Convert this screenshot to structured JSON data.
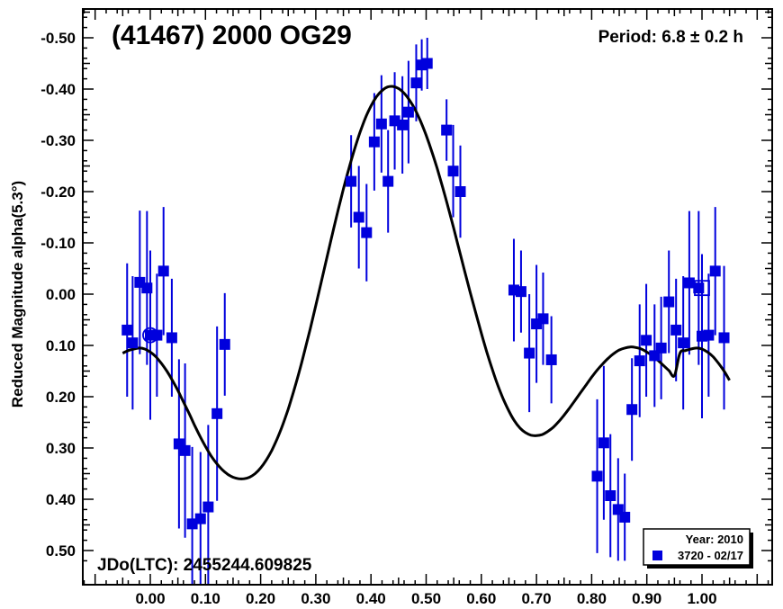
{
  "chart_data": {
    "type": "scatter",
    "title": "(41467) 2000 OG29",
    "period_label": "Period: 6.8 ± 0.2 h",
    "jd_label": "JDo(LTC): 2455244.609825",
    "ylabel": "Reduced Magnitude alpha(5.3°)",
    "xlim": [
      -0.125,
      1.125
    ],
    "ylim": [
      0.52,
      -0.56
    ],
    "x_ticks": [
      0.0,
      0.1,
      0.2,
      0.3,
      0.4,
      0.5,
      0.6,
      0.7,
      0.8,
      0.9,
      1.0
    ],
    "x_tick_labels": [
      "0.00",
      "0.10",
      "0.20",
      "0.30",
      "0.40",
      "0.50",
      "0.60",
      "0.70",
      "0.80",
      "0.90",
      "1.00"
    ],
    "y_ticks": [
      -0.5,
      -0.4,
      -0.3,
      -0.2,
      -0.1,
      0.0,
      0.1,
      0.2,
      0.3,
      0.4,
      0.5
    ],
    "y_tick_labels": [
      "-0.50",
      "-0.40",
      "-0.30",
      "-0.20",
      "-0.10",
      "0.00",
      "0.10",
      "0.20",
      "0.30",
      "0.40",
      "0.50"
    ],
    "grid": false,
    "legend": {
      "placement": "bottom-right",
      "header": "Year: 2010",
      "entries": [
        {
          "label": "3720 - 02/17",
          "color": "#0000dd",
          "marker": "square"
        }
      ]
    },
    "colors": {
      "points": "#0000dd",
      "errorbars": "#0000dd",
      "curve": "#000000"
    },
    "series": [
      {
        "name": "3720 - 02/17",
        "points": [
          {
            "x": -0.042,
            "y": 0.07,
            "err": 0.13
          },
          {
            "x": -0.032,
            "y": 0.095,
            "err": 0.13
          },
          {
            "x": -0.019,
            "y": -0.023,
            "err": 0.14
          },
          {
            "x": -0.006,
            "y": -0.012,
            "err": 0.15
          },
          {
            "x": 0.0,
            "y": 0.08,
            "err": 0.165
          },
          {
            "x": 0.012,
            "y": 0.08,
            "err": 0.12
          },
          {
            "x": 0.024,
            "y": -0.045,
            "err": 0.125
          },
          {
            "x": 0.039,
            "y": 0.085,
            "err": 0.115
          },
          {
            "x": 0.052,
            "y": 0.292,
            "err": 0.165
          },
          {
            "x": 0.063,
            "y": 0.305,
            "err": 0.17
          },
          {
            "x": 0.076,
            "y": 0.448,
            "err": 0.15
          },
          {
            "x": 0.091,
            "y": 0.438,
            "err": 0.13
          },
          {
            "x": 0.105,
            "y": 0.415,
            "err": 0.16
          },
          {
            "x": 0.121,
            "y": 0.233,
            "err": 0.17
          },
          {
            "x": 0.135,
            "y": 0.098,
            "err": 0.1
          },
          {
            "x": 0.364,
            "y": -0.22,
            "err": 0.09
          },
          {
            "x": 0.378,
            "y": -0.15,
            "err": 0.1
          },
          {
            "x": 0.392,
            "y": -0.12,
            "err": 0.095
          },
          {
            "x": 0.406,
            "y": -0.297,
            "err": 0.095
          },
          {
            "x": 0.419,
            "y": -0.332,
            "err": 0.095
          },
          {
            "x": 0.431,
            "y": -0.22,
            "err": 0.1
          },
          {
            "x": 0.443,
            "y": -0.338,
            "err": 0.095
          },
          {
            "x": 0.457,
            "y": -0.33,
            "err": 0.095
          },
          {
            "x": 0.468,
            "y": -0.355,
            "err": 0.1
          },
          {
            "x": 0.482,
            "y": -0.412,
            "err": 0.075
          },
          {
            "x": 0.492,
            "y": -0.447,
            "err": 0.05
          },
          {
            "x": 0.502,
            "y": -0.45,
            "err": 0.05
          },
          {
            "x": 0.537,
            "y": -0.32,
            "err": 0.06
          },
          {
            "x": 0.549,
            "y": -0.24,
            "err": 0.09
          },
          {
            "x": 0.562,
            "y": -0.2,
            "err": 0.09
          },
          {
            "x": 0.659,
            "y": -0.008,
            "err": 0.1
          },
          {
            "x": 0.672,
            "y": -0.005,
            "err": 0.08
          },
          {
            "x": 0.687,
            "y": 0.115,
            "err": 0.115
          },
          {
            "x": 0.7,
            "y": 0.058,
            "err": 0.115
          },
          {
            "x": 0.712,
            "y": 0.048,
            "err": 0.09
          },
          {
            "x": 0.727,
            "y": 0.128,
            "err": 0.085
          },
          {
            "x": 0.81,
            "y": 0.355,
            "err": 0.15
          },
          {
            "x": 0.822,
            "y": 0.29,
            "err": 0.15
          },
          {
            "x": 0.834,
            "y": 0.393,
            "err": 0.12
          },
          {
            "x": 0.848,
            "y": 0.42,
            "err": 0.1
          },
          {
            "x": 0.86,
            "y": 0.435,
            "err": 0.085
          },
          {
            "x": 0.873,
            "y": 0.225,
            "err": 0.1
          },
          {
            "x": 0.887,
            "y": 0.13,
            "err": 0.11
          },
          {
            "x": 0.899,
            "y": 0.09,
            "err": 0.11
          },
          {
            "x": 0.914,
            "y": 0.12,
            "err": 0.1
          },
          {
            "x": 0.926,
            "y": 0.105,
            "err": 0.1
          },
          {
            "x": 0.94,
            "y": 0.015,
            "err": 0.1
          },
          {
            "x": 0.953,
            "y": 0.07,
            "err": 0.1
          },
          {
            "x": 0.966,
            "y": 0.095,
            "err": 0.13
          },
          {
            "x": 0.977,
            "y": -0.022,
            "err": 0.14
          },
          {
            "x": 0.994,
            "y": -0.012,
            "err": 0.15
          },
          {
            "x": 1.0,
            "y": 0.082,
            "err": 0.16
          },
          {
            "x": 1.012,
            "y": 0.08,
            "err": 0.12
          },
          {
            "x": 1.024,
            "y": -0.045,
            "err": 0.125
          },
          {
            "x": 1.04,
            "y": 0.085,
            "err": 0.14
          }
        ],
        "open_markers": [
          {
            "shape": "circle",
            "x": 0.0,
            "y": 0.08
          },
          {
            "shape": "square",
            "x": 1.0,
            "y": -0.012
          }
        ]
      }
    ],
    "fit_curve": {
      "x": [
        -0.05,
        -0.04,
        -0.03,
        -0.02,
        -0.01,
        0.0,
        0.01,
        0.02,
        0.03,
        0.04,
        0.05,
        0.06,
        0.07,
        0.08,
        0.09,
        0.1,
        0.11,
        0.12,
        0.13,
        0.14,
        0.15,
        0.16,
        0.17,
        0.18,
        0.19,
        0.2,
        0.21,
        0.22,
        0.23,
        0.24,
        0.25,
        0.26,
        0.27,
        0.28,
        0.29,
        0.3,
        0.31,
        0.32,
        0.33,
        0.34,
        0.35,
        0.36,
        0.37,
        0.38,
        0.39,
        0.4,
        0.41,
        0.42,
        0.43,
        0.44,
        0.45,
        0.46,
        0.47,
        0.48,
        0.49,
        0.5,
        0.51,
        0.52,
        0.53,
        0.54,
        0.55,
        0.56,
        0.57,
        0.58,
        0.59,
        0.6,
        0.61,
        0.62,
        0.63,
        0.64,
        0.65,
        0.66,
        0.67,
        0.68,
        0.69,
        0.7,
        0.71,
        0.72,
        0.73,
        0.74,
        0.75,
        0.76,
        0.77,
        0.78,
        0.79,
        0.8,
        0.81,
        0.82,
        0.83,
        0.84,
        0.85,
        0.86,
        0.87,
        0.88,
        0.89,
        0.9,
        0.91,
        0.92,
        0.93,
        0.94,
        0.95,
        0.96,
        0.97,
        0.98,
        0.99,
        1.0,
        1.01,
        1.02,
        1.03,
        1.04,
        1.05
      ],
      "y": [
        0.115,
        0.11,
        0.107,
        0.105,
        0.107,
        0.113,
        0.122,
        0.135,
        0.15,
        0.168,
        0.188,
        0.21,
        0.232,
        0.255,
        0.277,
        0.297,
        0.315,
        0.33,
        0.342,
        0.351,
        0.357,
        0.36,
        0.36,
        0.357,
        0.35,
        0.339,
        0.324,
        0.305,
        0.282,
        0.255,
        0.224,
        0.189,
        0.151,
        0.11,
        0.067,
        0.022,
        -0.024,
        -0.071,
        -0.117,
        -0.162,
        -0.205,
        -0.245,
        -0.282,
        -0.315,
        -0.344,
        -0.367,
        -0.385,
        -0.397,
        -0.404,
        -0.405,
        -0.401,
        -0.392,
        -0.378,
        -0.36,
        -0.337,
        -0.31,
        -0.279,
        -0.245,
        -0.208,
        -0.169,
        -0.128,
        -0.086,
        -0.044,
        -0.003,
        0.037,
        0.076,
        0.113,
        0.147,
        0.178,
        0.205,
        0.228,
        0.247,
        0.261,
        0.27,
        0.275,
        0.276,
        0.274,
        0.268,
        0.26,
        0.249,
        0.236,
        0.222,
        0.207,
        0.192,
        0.177,
        0.162,
        0.148,
        0.136,
        0.125,
        0.116,
        0.109,
        0.105,
        0.103,
        0.104,
        0.107,
        0.113,
        0.12,
        0.129,
        0.139,
        0.149,
        0.159,
        0.115,
        0.11,
        0.107,
        0.105,
        0.107,
        0.113,
        0.122,
        0.135,
        0.15,
        0.168
      ]
    }
  }
}
